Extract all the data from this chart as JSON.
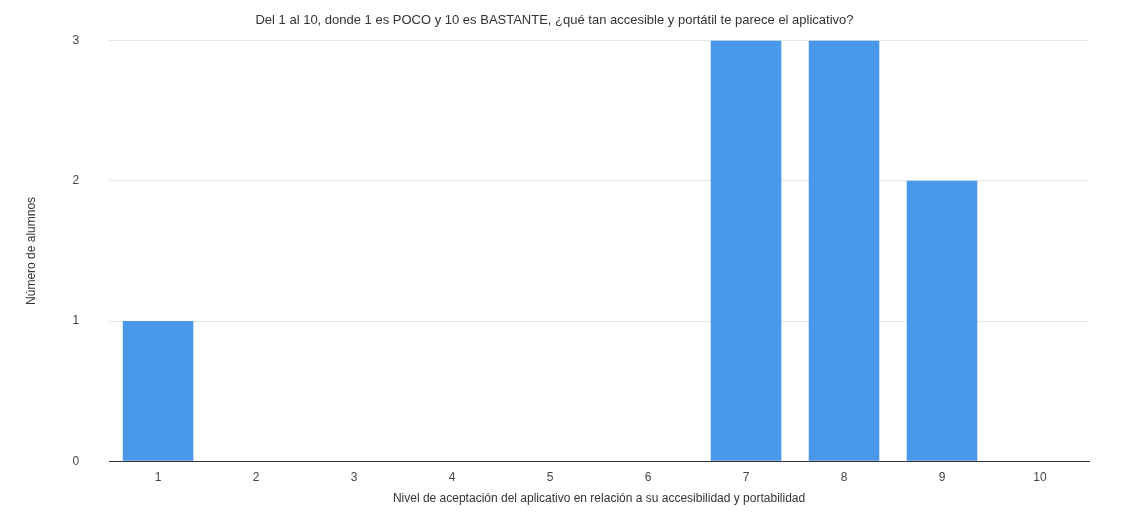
{
  "chart_data": {
    "type": "bar",
    "title": "Del 1 al 10, donde 1 es POCO y 10 es BASTANTE, ¿qué tan accesible y portátil te parece el aplicativo?",
    "xlabel": "Nivel de aceptación del aplicativo en relación a su accesibilidad y portabilidad",
    "ylabel": "Número de alumnos",
    "categories": [
      "1",
      "2",
      "3",
      "4",
      "5",
      "6",
      "7",
      "8",
      "9",
      "10"
    ],
    "values": [
      1,
      0,
      0,
      0,
      0,
      0,
      3,
      3,
      2,
      0
    ],
    "color": "#4a98ea",
    "ylim": [
      0,
      3
    ],
    "yticks": [
      0,
      1,
      2,
      3
    ],
    "grid": "y",
    "legend": false
  }
}
